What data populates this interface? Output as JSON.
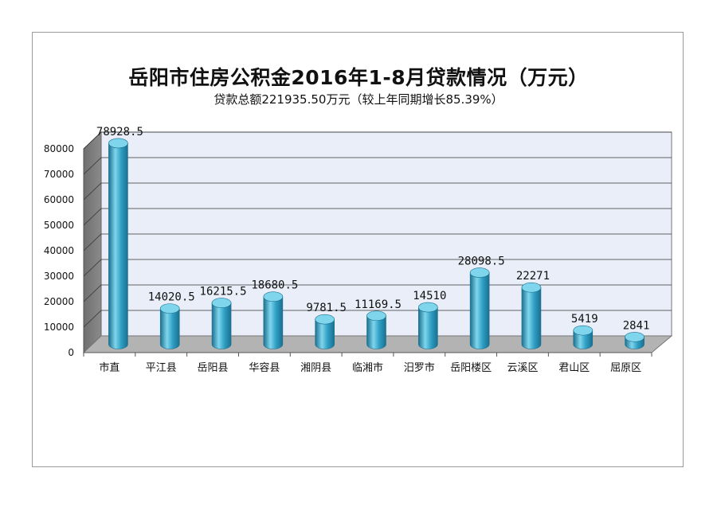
{
  "colors": {
    "bar_body": "#2f9fc4",
    "bar_light": "#7fd6ec",
    "bar_dark": "#1b6f8f",
    "wall": "#e9eef8",
    "left_wall": "#8b8b8b",
    "floor": "#b3b3b3",
    "grid": "#333333"
  },
  "chart_data": {
    "type": "bar",
    "style": "3d-cylinder",
    "title": "岳阳市住房公积金2016年1-8月贷款情况（万元）",
    "subtitle": "贷款总额221935.50万元（较上年同期增长85.39%）",
    "categories": [
      "市直",
      "平江县",
      "岳阳县",
      "华容县",
      "湘阴县",
      "临湘市",
      "汨罗市",
      "岳阳楼区",
      "云溪区",
      "君山区",
      "屈原区"
    ],
    "values": [
      78928.5,
      14020.5,
      16215.5,
      18680.5,
      9781.5,
      11169.5,
      14510,
      28098.5,
      22271,
      5419,
      2841
    ],
    "value_labels": [
      "78928.5",
      "14020.5",
      "16215.5",
      "18680.5",
      "9781.5",
      "11169.5",
      "14510",
      "28098.5",
      "22271",
      "5419",
      "2841"
    ],
    "ylim": [
      0,
      80000
    ],
    "yticks": [
      0,
      10000,
      20000,
      30000,
      40000,
      50000,
      60000,
      70000,
      80000
    ],
    "ytick_labels": [
      "0",
      "10000",
      "20000",
      "30000",
      "40000",
      "50000",
      "60000",
      "70000",
      "80000"
    ],
    "grid": true,
    "legend": "none"
  }
}
